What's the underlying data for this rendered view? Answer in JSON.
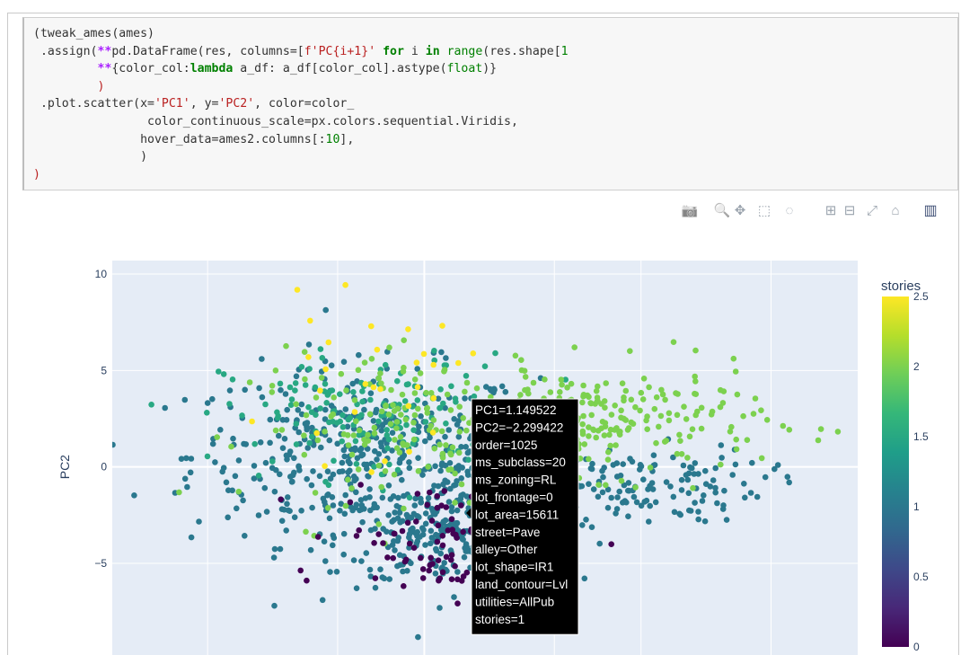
{
  "code": {
    "lines": [
      [
        {
          "t": "(tweak_ames(ames)",
          "c": "fn"
        }
      ],
      [
        {
          "t": " .assign(",
          "c": "fn"
        },
        {
          "t": "**",
          "c": "op"
        },
        {
          "t": "pd.DataFrame(res, columns=[",
          "c": "fn"
        },
        {
          "t": "f'PC{i+1}'",
          "c": "str"
        },
        {
          "t": " ",
          "c": "fn"
        },
        {
          "t": "for",
          "c": "kw"
        },
        {
          "t": " i ",
          "c": "fn"
        },
        {
          "t": "in",
          "c": "kw"
        },
        {
          "t": " ",
          "c": "fn"
        },
        {
          "t": "range",
          "c": "bi"
        },
        {
          "t": "(res.shape[",
          "c": "fn"
        },
        {
          "t": "1",
          "c": "num"
        }
      ],
      [
        {
          "t": "         ",
          "c": "fn"
        },
        {
          "t": "**",
          "c": "op"
        },
        {
          "t": "{color_col:",
          "c": "fn"
        },
        {
          "t": "lambda",
          "c": "kw"
        },
        {
          "t": " a_df: a_df[color_col].astype(",
          "c": "fn"
        },
        {
          "t": "float",
          "c": "bi"
        },
        {
          "t": ")}",
          "c": "fn"
        }
      ],
      [
        {
          "t": "         )",
          "c": "paren"
        }
      ],
      [
        {
          "t": " .plot.scatter(x=",
          "c": "fn"
        },
        {
          "t": "'PC1'",
          "c": "str"
        },
        {
          "t": ", y=",
          "c": "fn"
        },
        {
          "t": "'PC2'",
          "c": "str"
        },
        {
          "t": ", color=color_",
          "c": "fn"
        }
      ],
      [
        {
          "t": "                color_continuous_scale=px.colors.sequential.Viridis,",
          "c": "fn"
        }
      ],
      [
        {
          "t": "               hover_data=ames2.columns[:",
          "c": "fn"
        },
        {
          "t": "10",
          "c": "num"
        },
        {
          "t": "],",
          "c": "fn"
        }
      ],
      [
        {
          "t": "               )",
          "c": "fn"
        }
      ],
      [
        {
          "t": ")",
          "c": "paren"
        }
      ]
    ]
  },
  "modebar": {
    "icons": [
      "camera-icon",
      "zoom-icon",
      "pan-icon",
      "box-select-icon",
      "lasso-select-icon",
      "zoom-in-icon",
      "zoom-out-icon",
      "autoscale-icon",
      "reset-axes-icon",
      "plotly-logo-icon"
    ],
    "glyphs": [
      "📷",
      "🔍",
      "✥",
      "⬚",
      "◌",
      "⊞",
      "⊟",
      "⤢",
      "⌂",
      "▥"
    ]
  },
  "chart_data": {
    "type": "scatter",
    "title": "",
    "xlabel": "",
    "ylabel": "PC2",
    "ylim": [
      -9.8,
      10.7
    ],
    "xlim": [
      -7.2,
      10.0
    ],
    "yticks": [
      10,
      5,
      0,
      -5
    ],
    "ytick_labels": [
      "10",
      "5",
      "0",
      "−5"
    ],
    "colorbar": {
      "title": "stories",
      "range": [
        0,
        2.5
      ],
      "ticks": [
        2.5,
        2,
        1.5,
        1,
        0.5,
        0
      ],
      "tick_labels": [
        "2.5",
        "2",
        "1.5",
        "1",
        "0.5",
        "0"
      ],
      "colorscale": [
        "#440154",
        "#482878",
        "#3e4989",
        "#31688e",
        "#26828e",
        "#1f9e89",
        "#35b779",
        "#6ece58",
        "#b5de2b",
        "#fde725"
      ]
    },
    "background": "#e5ecf6",
    "grid": true,
    "clusters": [
      {
        "stories": 1.0,
        "cx": -1.4,
        "cy": 0.6,
        "sx": 2.0,
        "sy": 2.3,
        "n": 430
      },
      {
        "stories": 1.0,
        "cx": 0.6,
        "cy": -3.6,
        "sx": 1.3,
        "sy": 1.3,
        "n": 260
      },
      {
        "stories": 1.0,
        "cx": 4.6,
        "cy": -0.9,
        "sx": 1.6,
        "sy": 1.0,
        "n": 150
      },
      {
        "stories": 1.5,
        "cx": -1.2,
        "cy": 2.6,
        "sx": 1.7,
        "sy": 1.6,
        "n": 150
      },
      {
        "stories": 2.0,
        "cx": 0.0,
        "cy": 2.0,
        "sx": 2.0,
        "sy": 1.9,
        "n": 170
      },
      {
        "stories": 2.0,
        "cx": 4.2,
        "cy": 2.4,
        "sx": 1.8,
        "sy": 1.4,
        "n": 210
      },
      {
        "stories": 2.5,
        "cx": -1.3,
        "cy": 4.2,
        "sx": 1.1,
        "sy": 2.0,
        "n": 30
      },
      {
        "stories": 0.0,
        "cx": 0.6,
        "cy": -3.6,
        "sx": 1.3,
        "sy": 1.5,
        "n": 110
      }
    ],
    "hover": {
      "lines": [
        "PC1=1.149522",
        "PC2=−2.299422",
        "order=1025",
        "ms_subclass=20",
        "ms_zoning=RL",
        "lot_frontage=0",
        "lot_area=15611",
        "street=Pave",
        "alley=Other",
        "lot_shape=IR1",
        "land_contour=Lvl",
        "utilities=AllPub",
        "stories=1"
      ]
    }
  }
}
